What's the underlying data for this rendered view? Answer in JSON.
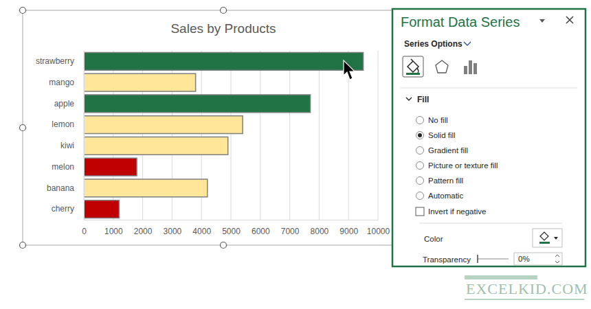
{
  "chart_data": {
    "type": "bar",
    "orientation": "horizontal",
    "title": "Sales by Products",
    "categories": [
      "strawberry",
      "mango",
      "apple",
      "lemon",
      "kiwi",
      "melon",
      "banana",
      "cherry"
    ],
    "values": [
      9500,
      3800,
      7700,
      5400,
      4900,
      1800,
      4200,
      1200
    ],
    "colors": [
      "#217346",
      "#ffe699",
      "#217346",
      "#ffe699",
      "#ffe699",
      "#c00000",
      "#ffe699",
      "#c00000"
    ],
    "xlim": [
      0,
      10000
    ],
    "xticks": [
      0,
      1000,
      2000,
      3000,
      4000,
      5000,
      6000,
      7000,
      8000,
      9000,
      10000
    ],
    "grid": true
  },
  "panel": {
    "title": "Format Data Series",
    "section": "Series Options",
    "group": "Fill",
    "options": [
      "No fill",
      "Solid fill",
      "Gradient fill",
      "Picture or texture fill",
      "Pattern fill",
      "Automatic"
    ],
    "selected": "Solid fill",
    "checkbox": "Invert if negative",
    "color_label": "Color",
    "transparency_label": "Transparency",
    "transparency": "0%"
  },
  "watermark": "EXCELKID.COM"
}
